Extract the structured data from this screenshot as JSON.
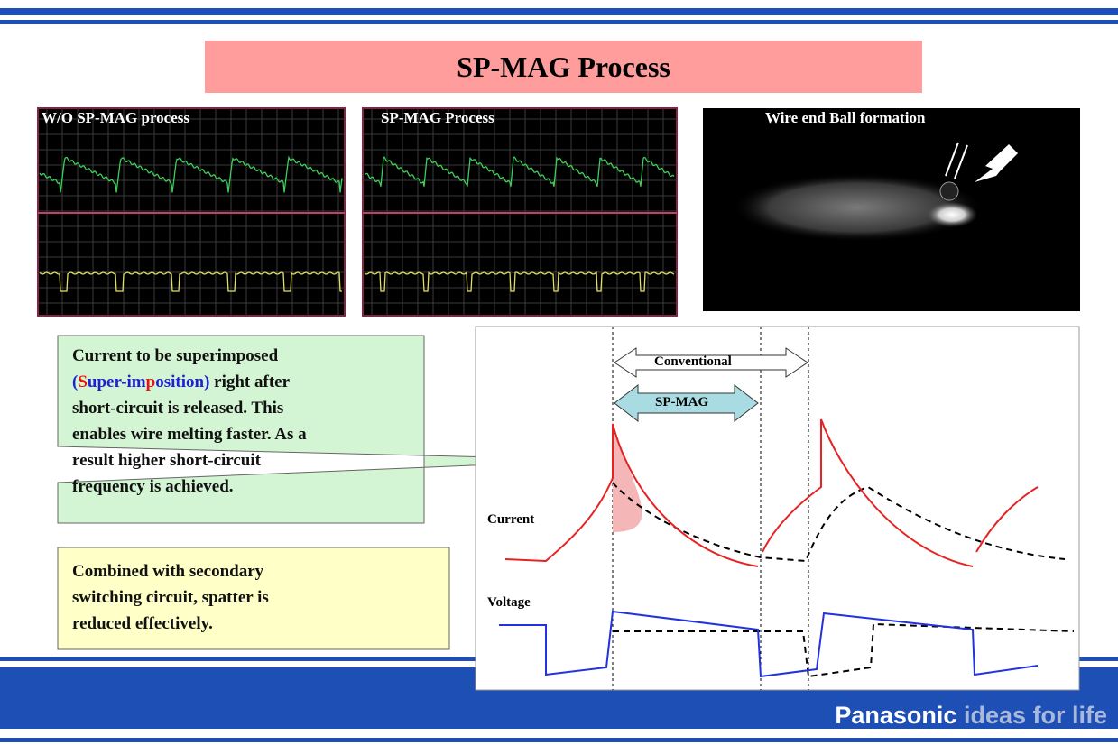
{
  "title": "SP-MAG Process",
  "panels": [
    "W/O SP-MAG process",
    "SP-MAG Process",
    "Wire end Ball formation"
  ],
  "callout_green": {
    "lines": [
      [
        "Current to be superimposed"
      ],
      [
        "(",
        "S",
        "uper-im",
        "p",
        "osition)",
        " right after"
      ],
      [
        "short-circuit is released. This"
      ],
      [
        "enables wire melting faster. As a"
      ],
      [
        "result higher short-circuit"
      ],
      [
        "frequency is achieved."
      ]
    ]
  },
  "callout_yellow": {
    "lines": [
      "Combined with secondary",
      "switching circuit, spatter is",
      "reduced effectively."
    ]
  },
  "diagram": {
    "conventional": "Conventional",
    "spmag": "SP-MAG",
    "current": "Current",
    "voltage": "Voltage"
  },
  "footer": {
    "brand": "Panasonic",
    "tagline": "ideas for life"
  }
}
